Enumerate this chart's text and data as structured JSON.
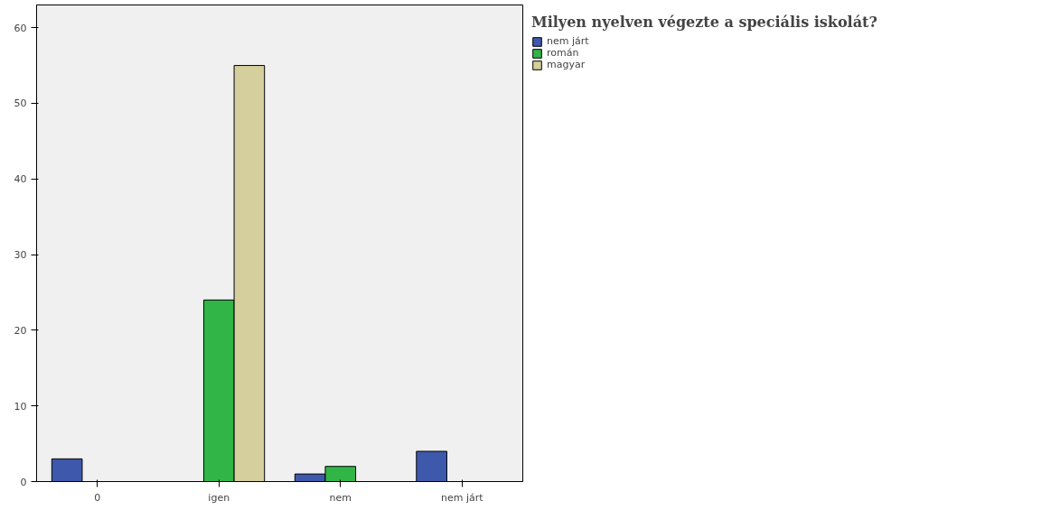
{
  "chart_data": {
    "type": "bar",
    "legend_title": "Milyen nyelven végezte a speciális iskolát?",
    "categories": [
      "0",
      "igen",
      "nem",
      "nem járt"
    ],
    "series": [
      {
        "name": "nem járt",
        "color": "#3e58ac",
        "values": [
          3,
          null,
          1,
          4
        ]
      },
      {
        "name": "román",
        "color": "#31b547",
        "values": [
          null,
          24,
          2,
          null
        ]
      },
      {
        "name": "magyar",
        "color": "#d5cf9e",
        "values": [
          null,
          55,
          null,
          null
        ]
      }
    ],
    "ylim": [
      0,
      63
    ],
    "yticks": [
      0,
      10,
      20,
      30,
      40,
      50,
      60
    ],
    "grid": false,
    "legend": "top right"
  }
}
